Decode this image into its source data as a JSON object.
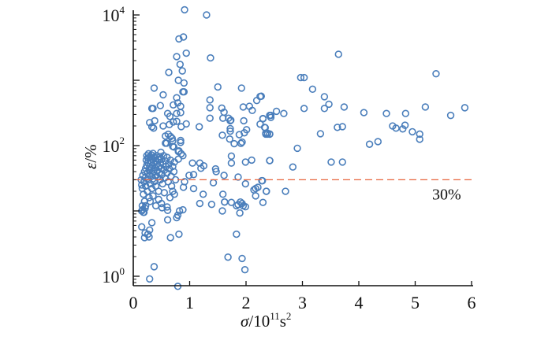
{
  "chart_data": {
    "type": "scatter",
    "title": "",
    "xlabel": {
      "symbol": "σ",
      "base": "/10",
      "exp": "11",
      "unit": "s",
      "unit_exp": "2"
    },
    "ylabel": {
      "symbol": "ε",
      "unit": "/%"
    },
    "xlim": [
      0,
      6
    ],
    "ylim": [
      0.72,
      12000
    ],
    "yscale": "log",
    "grid": false,
    "legend": "none",
    "x_ticks": [
      "0",
      "1",
      "2",
      "3",
      "4",
      "5",
      "6"
    ],
    "y_ticks": [
      {
        "base": "10",
        "exp": "0",
        "value": 1
      },
      {
        "base": "10",
        "exp": "2",
        "value": 100
      },
      {
        "base": "10",
        "exp": "4",
        "value": 10000
      }
    ],
    "reference_line": {
      "y": 30,
      "label": "30%",
      "color": "#e8643c"
    },
    "marker_color": "#4a7ebb",
    "points": [
      [
        3.64,
        2500
      ],
      [
        2.97,
        1100
      ],
      [
        3.03,
        1100
      ],
      [
        3.18,
        730
      ],
      [
        3.39,
        560
      ],
      [
        3.47,
        430
      ],
      [
        3.03,
        370
      ],
      [
        3.39,
        370
      ],
      [
        3.74,
        390
      ],
      [
        4.09,
        320
      ],
      [
        4.49,
        310
      ],
      [
        4.83,
        310
      ],
      [
        5.18,
        390
      ],
      [
        5.37,
        1260
      ],
      [
        5.63,
        290
      ],
      [
        5.88,
        380
      ],
      [
        4.6,
        200
      ],
      [
        4.66,
        185
      ],
      [
        4.78,
        180
      ],
      [
        4.82,
        205
      ],
      [
        4.95,
        163
      ],
      [
        5.08,
        150
      ],
      [
        5.08,
        125
      ],
      [
        4.19,
        105
      ],
      [
        4.34,
        115
      ],
      [
        3.62,
        190
      ],
      [
        3.71,
        195
      ],
      [
        3.32,
        152
      ],
      [
        2.91,
        91
      ],
      [
        2.83,
        47
      ],
      [
        3.51,
        56
      ],
      [
        3.71,
        56
      ],
      [
        2.42,
        59
      ],
      [
        2.27,
        570
      ],
      [
        2.3,
        257
      ],
      [
        2.44,
        290
      ],
      [
        2.44,
        270
      ],
      [
        2.54,
        335
      ],
      [
        2.67,
        310
      ],
      [
        2.33,
        190
      ],
      [
        2.35,
        150
      ],
      [
        2.38,
        155
      ],
      [
        2.42,
        150
      ],
      [
        2.29,
        29
      ],
      [
        2.36,
        20
      ],
      [
        2.7,
        20
      ],
      [
        0.91,
        12000
      ],
      [
        1.3,
        10000
      ],
      [
        1.37,
        2200
      ],
      [
        1.5,
        790
      ],
      [
        1.92,
        760
      ],
      [
        1.36,
        500
      ],
      [
        1.36,
        380
      ],
      [
        1.36,
        263
      ],
      [
        1.17,
        194
      ],
      [
        1.57,
        375
      ],
      [
        1.61,
        325
      ],
      [
        1.59,
        263
      ],
      [
        1.69,
        263
      ],
      [
        1.72,
        240
      ],
      [
        1.73,
        245
      ],
      [
        1.72,
        182
      ],
      [
        1.72,
        166
      ],
      [
        1.58,
        144
      ],
      [
        1.71,
        126
      ],
      [
        1.79,
        107
      ],
      [
        1.88,
        147
      ],
      [
        1.91,
        108
      ],
      [
        1.93,
        113
      ],
      [
        1.96,
        240
      ],
      [
        1.97,
        157
      ],
      [
        2.01,
        175
      ],
      [
        1.95,
        390
      ],
      [
        2.06,
        400
      ],
      [
        2.11,
        345
      ],
      [
        2.19,
        490
      ],
      [
        2.25,
        565
      ],
      [
        2.25,
        213
      ],
      [
        2.3,
        260
      ],
      [
        2.34,
        188
      ],
      [
        2.35,
        155
      ],
      [
        2.38,
        150
      ],
      [
        2.42,
        290
      ],
      [
        2.42,
        150
      ],
      [
        0.37,
        760
      ],
      [
        0.53,
        600
      ],
      [
        0.35,
        370
      ],
      [
        0.33,
        370
      ],
      [
        0.48,
        410
      ],
      [
        0.77,
        2300
      ],
      [
        0.81,
        4300
      ],
      [
        0.89,
        4600
      ],
      [
        0.94,
        2600
      ],
      [
        0.83,
        1750
      ],
      [
        0.87,
        1390
      ],
      [
        0.63,
        1320
      ],
      [
        0.8,
        1000
      ],
      [
        0.9,
        910
      ],
      [
        0.88,
        665
      ],
      [
        0.9,
        665
      ],
      [
        0.77,
        540
      ],
      [
        0.79,
        450
      ],
      [
        0.71,
        420
      ],
      [
        0.84,
        400
      ],
      [
        0.61,
        310
      ],
      [
        0.65,
        280
      ],
      [
        0.77,
        310
      ],
      [
        0.84,
        320
      ],
      [
        0.29,
        225
      ],
      [
        0.38,
        240
      ],
      [
        0.33,
        194
      ],
      [
        0.36,
        185
      ],
      [
        0.53,
        200
      ],
      [
        0.64,
        210
      ],
      [
        0.71,
        230
      ],
      [
        0.77,
        235
      ],
      [
        0.94,
        215
      ],
      [
        0.85,
        195
      ],
      [
        0.57,
        140
      ],
      [
        0.62,
        149
      ],
      [
        0.66,
        138
      ],
      [
        0.69,
        129
      ],
      [
        0.59,
        109
      ],
      [
        0.7,
        118
      ],
      [
        0.84,
        120
      ],
      [
        0.72,
        95
      ],
      [
        0.81,
        83
      ],
      [
        0.49,
        79
      ],
      [
        0.15,
        5.7
      ],
      [
        0.33,
        6.6
      ],
      [
        0.21,
        4.6
      ],
      [
        0.26,
        4.4
      ],
      [
        0.28,
        4.0
      ],
      [
        0.2,
        3.9
      ],
      [
        0.29,
        5.1
      ],
      [
        0.37,
        1.4
      ],
      [
        0.29,
        0.91
      ],
      [
        0.79,
        0.7
      ],
      [
        0.66,
        3.9
      ],
      [
        0.81,
        4.4
      ],
      [
        0.61,
        7.3
      ],
      [
        0.77,
        7.9
      ],
      [
        0.79,
        8.6
      ],
      [
        0.82,
        10
      ],
      [
        0.88,
        10.4
      ],
      [
        0.61,
        10.2
      ],
      [
        0.51,
        11.2
      ],
      [
        1.83,
        4.4
      ],
      [
        1.68,
        1.96
      ],
      [
        1.93,
        1.87
      ],
      [
        1.98,
        1.26
      ],
      [
        1.58,
        10
      ],
      [
        1.74,
        13.5
      ],
      [
        1.62,
        13.7
      ],
      [
        1.83,
        12
      ],
      [
        1.86,
        12.5
      ],
      [
        1.89,
        9.3
      ],
      [
        1.93,
        13
      ],
      [
        1.95,
        12
      ],
      [
        1.99,
        11.6
      ],
      [
        1.9,
        13.7
      ],
      [
        1.18,
        13
      ],
      [
        1.39,
        12.6
      ],
      [
        1.62,
        13.7
      ],
      [
        1.59,
        18
      ],
      [
        0.89,
        23
      ],
      [
        1.07,
        22
      ],
      [
        1.24,
        18
      ],
      [
        1.42,
        27
      ],
      [
        0.99,
        35
      ],
      [
        1.07,
        36
      ],
      [
        1.05,
        54
      ],
      [
        1.18,
        54
      ],
      [
        1.2,
        45
      ],
      [
        1.25,
        49
      ],
      [
        1.46,
        44
      ],
      [
        1.47,
        40
      ],
      [
        1.61,
        35
      ],
      [
        1.74,
        54
      ],
      [
        1.74,
        69
      ],
      [
        1.86,
        33
      ],
      [
        1.99,
        26
      ],
      [
        1.99,
        56
      ],
      [
        2.1,
        60
      ],
      [
        2.14,
        21
      ],
      [
        2.17,
        17
      ],
      [
        2.17,
        22
      ],
      [
        2.21,
        23
      ],
      [
        2.28,
        29
      ],
      [
        2.36,
        20
      ],
      [
        2.3,
        13.5
      ],
      [
        2.42,
        59
      ],
      [
        0.57,
        109
      ],
      [
        0.7,
        97
      ],
      [
        0.8,
        81
      ],
      [
        0.84,
        112
      ],
      [
        0.88,
        70
      ],
      [
        0.15,
        10
      ],
      [
        0.19,
        9.5
      ],
      [
        0.17,
        10.5
      ],
      [
        0.21,
        11
      ],
      [
        0.91,
        28
      ],
      [
        0.8,
        62
      ],
      [
        0.85,
        75
      ],
      [
        0.14,
        30
      ],
      [
        0.15,
        25
      ],
      [
        0.16,
        22
      ],
      [
        0.17,
        35
      ],
      [
        0.18,
        18
      ],
      [
        0.19,
        28
      ],
      [
        0.2,
        40
      ],
      [
        0.21,
        32
      ],
      [
        0.22,
        45
      ],
      [
        0.22,
        24
      ],
      [
        0.23,
        60
      ],
      [
        0.24,
        70
      ],
      [
        0.24,
        50
      ],
      [
        0.25,
        38
      ],
      [
        0.25,
        20
      ],
      [
        0.26,
        65
      ],
      [
        0.26,
        55
      ],
      [
        0.27,
        30
      ],
      [
        0.27,
        75
      ],
      [
        0.28,
        42
      ],
      [
        0.28,
        16
      ],
      [
        0.29,
        48
      ],
      [
        0.3,
        68
      ],
      [
        0.3,
        35
      ],
      [
        0.3,
        26
      ],
      [
        0.31,
        58
      ],
      [
        0.32,
        72
      ],
      [
        0.32,
        44
      ],
      [
        0.33,
        38
      ],
      [
        0.33,
        22
      ],
      [
        0.34,
        62
      ],
      [
        0.34,
        50
      ],
      [
        0.35,
        31
      ],
      [
        0.35,
        76
      ],
      [
        0.36,
        55
      ],
      [
        0.36,
        40
      ],
      [
        0.37,
        28
      ],
      [
        0.38,
        66
      ],
      [
        0.38,
        46
      ],
      [
        0.39,
        35
      ],
      [
        0.4,
        58
      ],
      [
        0.4,
        24
      ],
      [
        0.41,
        70
      ],
      [
        0.42,
        42
      ],
      [
        0.42,
        52
      ],
      [
        0.43,
        33
      ],
      [
        0.44,
        62
      ],
      [
        0.45,
        48
      ],
      [
        0.45,
        20
      ],
      [
        0.46,
        38
      ],
      [
        0.47,
        68
      ],
      [
        0.48,
        55
      ],
      [
        0.48,
        30
      ],
      [
        0.5,
        45
      ],
      [
        0.5,
        62
      ],
      [
        0.51,
        36
      ],
      [
        0.52,
        26
      ],
      [
        0.53,
        52
      ],
      [
        0.54,
        70
      ],
      [
        0.55,
        42
      ],
      [
        0.56,
        32
      ],
      [
        0.57,
        58
      ],
      [
        0.58,
        48
      ],
      [
        0.6,
        38
      ],
      [
        0.6,
        66
      ],
      [
        0.62,
        28
      ],
      [
        0.63,
        52
      ],
      [
        0.64,
        44
      ],
      [
        0.66,
        60
      ],
      [
        0.67,
        34
      ],
      [
        0.68,
        24
      ],
      [
        0.7,
        48
      ],
      [
        0.72,
        40
      ],
      [
        0.73,
        56
      ],
      [
        0.75,
        30
      ],
      [
        0.2,
        14
      ],
      [
        0.22,
        12
      ],
      [
        0.3,
        14
      ],
      [
        0.35,
        17
      ],
      [
        0.45,
        15
      ],
      [
        0.5,
        13
      ],
      [
        0.55,
        19
      ],
      [
        0.6,
        11.5
      ],
      [
        0.65,
        16
      ],
      [
        0.7,
        20
      ],
      [
        0.73,
        18
      ],
      [
        0.4,
        12
      ],
      [
        0.16,
        12
      ],
      [
        0.18,
        9.5
      ]
    ]
  }
}
